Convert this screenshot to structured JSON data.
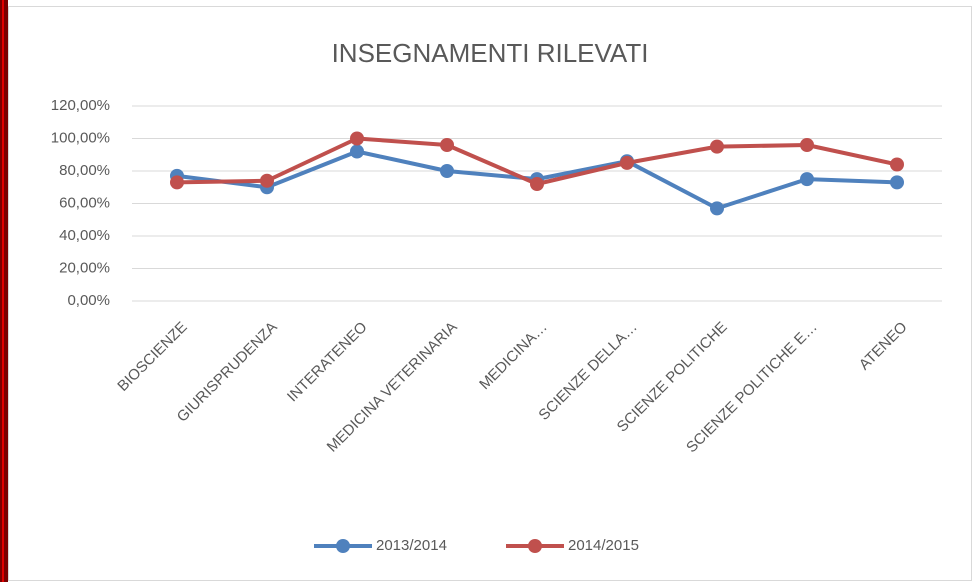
{
  "chart_data": {
    "type": "line",
    "title": "INSEGNAMENTI RILEVATI",
    "categories": [
      "BIOSCIENZE",
      "GIURISPRUDENZA",
      "INTERATENEO",
      "MEDICINA VETERINARIA",
      "MEDICINA…",
      "SCIENZE DELLA…",
      "SCIENZE POLITICHE",
      "SCIENZE POLITICHE E…",
      "ATENEO"
    ],
    "series": [
      {
        "name": "2013/2014",
        "color": "#4f81bd",
        "values": [
          77,
          70,
          92,
          80,
          75,
          86,
          57,
          75,
          73
        ]
      },
      {
        "name": "2014/2015",
        "color": "#c0504d",
        "values": [
          73,
          74,
          100,
          96,
          72,
          85,
          95,
          96,
          84
        ]
      }
    ],
    "ylim": [
      0,
      120
    ],
    "yticks": [
      {
        "value": 0,
        "label": "0,00%"
      },
      {
        "value": 20,
        "label": "20,00%"
      },
      {
        "value": 40,
        "label": "40,00%"
      },
      {
        "value": 60,
        "label": "60,00%"
      },
      {
        "value": 80,
        "label": "80,00%"
      },
      {
        "value": 100,
        "label": "100,00%"
      },
      {
        "value": 120,
        "label": "120,00%"
      }
    ],
    "grid": true,
    "legend": "bottom"
  }
}
